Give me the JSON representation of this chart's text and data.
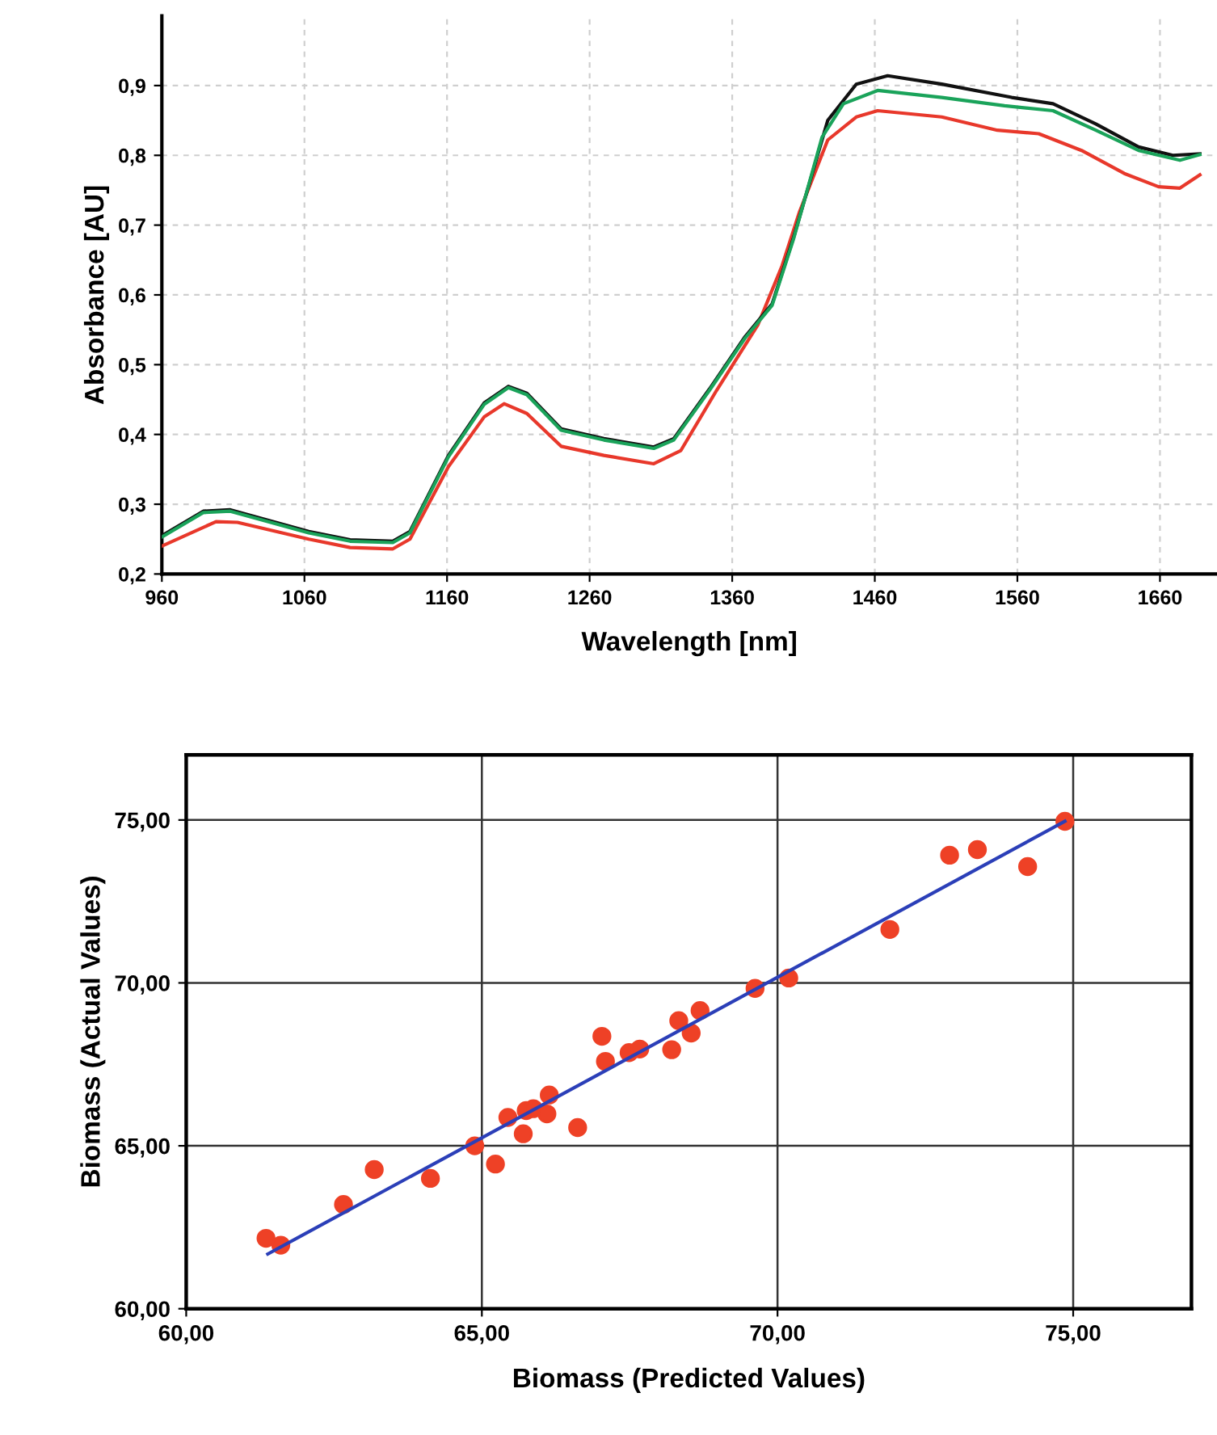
{
  "chart_data": [
    {
      "type": "line",
      "xlabel": "Wavelength [nm]",
      "ylabel": "Absorbance [AU]",
      "xlim": [
        960,
        1700
      ],
      "ylim": [
        0.2,
        1.0
      ],
      "xticks": [
        960,
        1060,
        1160,
        1260,
        1360,
        1460,
        1560,
        1660
      ],
      "yticks": [
        {
          "value": 0.2,
          "label": "0,2"
        },
        {
          "value": 0.3,
          "label": "0,3"
        },
        {
          "value": 0.4,
          "label": "0,4"
        },
        {
          "value": 0.5,
          "label": "0,5"
        },
        {
          "value": 0.6,
          "label": "0,6"
        },
        {
          "value": 0.7,
          "label": "0,7"
        },
        {
          "value": 0.8,
          "label": "0,8"
        },
        {
          "value": 0.9,
          "label": "0,9"
        }
      ],
      "grid": true,
      "legend": false,
      "marker": "none",
      "line_style": "solid",
      "series": [
        {
          "color": "#e8382b",
          "x": [
            960,
            998,
            1013,
            1063,
            1092,
            1122,
            1134,
            1161,
            1186,
            1200,
            1216,
            1240,
            1270,
            1305,
            1324,
            1349,
            1378,
            1395,
            1407,
            1427,
            1447,
            1462,
            1507,
            1546,
            1575,
            1605,
            1635,
            1659,
            1674,
            1688
          ],
          "values": [
            0.24,
            0.275,
            0.274,
            0.25,
            0.238,
            0.236,
            0.25,
            0.354,
            0.425,
            0.444,
            0.43,
            0.383,
            0.37,
            0.358,
            0.377,
            0.463,
            0.557,
            0.642,
            0.718,
            0.822,
            0.855,
            0.864,
            0.855,
            0.836,
            0.831,
            0.807,
            0.774,
            0.755,
            0.753,
            0.772
          ]
        },
        {
          "color": "#111111",
          "x": [
            960,
            989,
            1008,
            1063,
            1092,
            1122,
            1134,
            1161,
            1186,
            1203,
            1216,
            1240,
            1270,
            1305,
            1319,
            1344,
            1369,
            1388,
            1403,
            1427,
            1447,
            1469,
            1507,
            1556,
            1585,
            1615,
            1645,
            1669,
            1688
          ],
          "values": [
            0.255,
            0.29,
            0.292,
            0.261,
            0.249,
            0.247,
            0.261,
            0.37,
            0.445,
            0.469,
            0.459,
            0.408,
            0.394,
            0.382,
            0.394,
            0.465,
            0.54,
            0.587,
            0.682,
            0.85,
            0.902,
            0.914,
            0.902,
            0.883,
            0.874,
            0.845,
            0.812,
            0.8,
            0.802
          ]
        },
        {
          "color": "#1aa35a",
          "x": [
            960,
            989,
            1008,
            1063,
            1092,
            1122,
            1134,
            1161,
            1186,
            1203,
            1216,
            1240,
            1270,
            1305,
            1319,
            1344,
            1369,
            1388,
            1403,
            1423,
            1438,
            1462,
            1507,
            1551,
            1585,
            1615,
            1645,
            1674,
            1688
          ],
          "values": [
            0.253,
            0.288,
            0.29,
            0.259,
            0.247,
            0.245,
            0.259,
            0.368,
            0.443,
            0.467,
            0.457,
            0.406,
            0.392,
            0.38,
            0.392,
            0.463,
            0.538,
            0.585,
            0.68,
            0.826,
            0.874,
            0.893,
            0.883,
            0.871,
            0.864,
            0.836,
            0.807,
            0.793,
            0.801
          ]
        }
      ]
    },
    {
      "type": "scatter",
      "xlabel": "Biomass (Predicted Values)",
      "ylabel": "Biomass (Actual Values)",
      "xlim": [
        60,
        77
      ],
      "ylim": [
        60,
        77
      ],
      "xticks": [
        {
          "value": 60,
          "label": "60,00"
        },
        {
          "value": 65,
          "label": "65,00"
        },
        {
          "value": 70,
          "label": "70,00"
        },
        {
          "value": 75,
          "label": "75,00"
        }
      ],
      "yticks": [
        {
          "value": 60,
          "label": "60,00"
        },
        {
          "value": 65,
          "label": "65,00"
        },
        {
          "value": 70,
          "label": "70,00"
        },
        {
          "value": 75,
          "label": "75,00"
        }
      ],
      "grid": true,
      "legend": false,
      "marker": "circle",
      "series": [
        {
          "type": "scatter",
          "color": "#ee4126",
          "x": [
            61.35,
            61.6,
            62.66,
            63.18,
            64.13,
            64.88,
            65.23,
            65.44,
            65.7,
            65.75,
            65.87,
            66.1,
            66.14,
            66.62,
            67.03,
            67.09,
            67.49,
            67.67,
            68.21,
            68.33,
            68.54,
            68.69,
            69.62,
            70.19,
            71.9,
            72.91,
            73.38,
            74.23,
            74.86
          ],
          "values": [
            62.16,
            61.95,
            63.2,
            64.27,
            64.0,
            65.0,
            64.44,
            65.87,
            65.37,
            66.08,
            66.14,
            65.98,
            66.56,
            65.56,
            68.36,
            67.59,
            67.86,
            67.97,
            67.95,
            68.84,
            68.46,
            69.15,
            69.83,
            70.15,
            71.64,
            73.92,
            74.09,
            73.57,
            74.96
          ]
        },
        {
          "type": "line",
          "color": "#2b3fb8",
          "marker": "none",
          "x": [
            61.38,
            74.86
          ],
          "values": [
            61.68,
            74.96
          ]
        }
      ]
    }
  ]
}
